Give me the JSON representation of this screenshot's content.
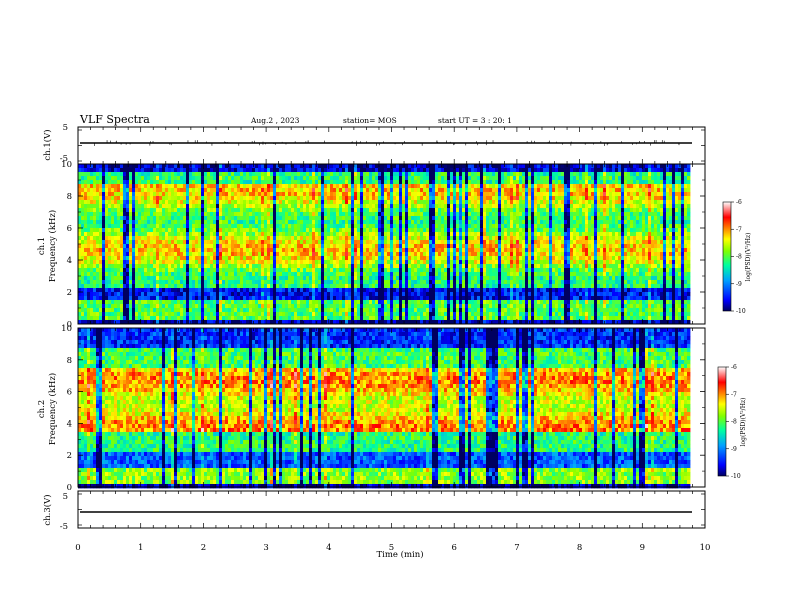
{
  "chart_data": [
    {
      "type": "line",
      "panel": "ch1_voltage",
      "ylabel": "ch.1(V)",
      "ylim": [
        -5,
        5
      ],
      "yticks": [
        "5",
        "-5"
      ],
      "series": [
        {
          "x": [
            0,
            9.8
          ],
          "y": [
            0,
            0
          ]
        }
      ]
    },
    {
      "type": "heatmap",
      "panel": "ch1_spectrogram",
      "ylabel_channel": "ch.1",
      "ylabel": "Frequency (kHz)",
      "ylim": [
        0,
        10
      ],
      "yticks": [
        "0",
        "2",
        "4",
        "6",
        "8",
        "10"
      ],
      "colorbar": {
        "label": "log(PSD)(V²/Hz)",
        "range": [
          -10,
          -6
        ],
        "ticks": [
          "-6",
          "-7",
          "-8",
          "-9",
          "-10"
        ],
        "colormap": "rainbow (blue low, red high, white top)"
      }
    },
    {
      "type": "heatmap",
      "panel": "ch2_spectrogram",
      "ylabel_channel": "ch.2",
      "ylabel": "Frequency (kHz)",
      "ylim": [
        0,
        10
      ],
      "yticks": [
        "0",
        "2",
        "4",
        "6",
        "8",
        "10"
      ],
      "colorbar": {
        "label": "log(PSD)(V²/Hz)",
        "range": [
          -10,
          -6
        ],
        "ticks": [
          "-6",
          "-7",
          "-8",
          "-9",
          "-10"
        ],
        "colormap": "rainbow (blue low, red high, white top)"
      }
    },
    {
      "type": "line",
      "panel": "ch3_voltage",
      "ylabel": "ch.3(V)",
      "ylim": [
        -5,
        5
      ],
      "yticks": [
        "5",
        "-5"
      ],
      "series": [
        {
          "x": [
            0,
            9.8
          ],
          "y": [
            0,
            0
          ]
        }
      ]
    }
  ],
  "header": {
    "title": "VLF Spectra",
    "date": "Aug.2  , 2023",
    "station": "station= MOS",
    "start": "start  UT =   3 : 20: 1"
  },
  "xaxis": {
    "label": "Time  (min)",
    "range": [
      0,
      10
    ],
    "ticks": [
      "0",
      "1",
      "2",
      "3",
      "4",
      "5",
      "6",
      "7",
      "8",
      "9",
      "10"
    ],
    "data_end": 9.8
  },
  "colors": {
    "axis": "#000000",
    "colormap_stops": [
      "#000060",
      "#0000ff",
      "#00a0ff",
      "#00ffa0",
      "#80ff00",
      "#ffff00",
      "#ff8000",
      "#ff0000",
      "#ffffff"
    ]
  }
}
